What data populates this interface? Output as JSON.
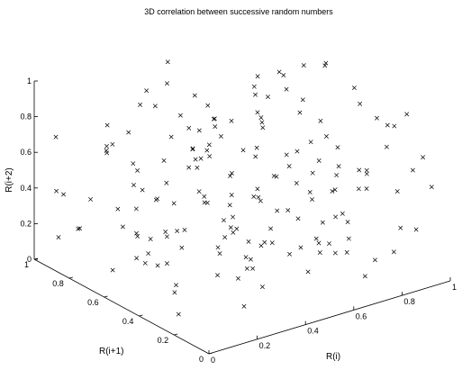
{
  "chart_data": {
    "type": "scatter",
    "title": "3D correlation between successive random numbers",
    "xlabel": "R(i)",
    "ylabel": "R(i+1)",
    "zlabel": "R(i+2)",
    "xlim": [
      0,
      1
    ],
    "ylim": [
      0,
      1
    ],
    "zlim": [
      0,
      1
    ],
    "marker": "x",
    "marker_color": "#000000",
    "grid": false,
    "x_ticks": [
      "0",
      "0.2",
      "0.4",
      "0.6",
      "0.8",
      "1"
    ],
    "y_ticks": [
      "0",
      "0.2",
      "0.4",
      "0.6",
      "0.8",
      "1"
    ],
    "z_ticks": [
      "0",
      "0.2",
      "0.4",
      "0.6",
      "0.8",
      "1"
    ],
    "series": [
      {
        "points": [
          [
            0.05,
            0.62,
            0.12
          ],
          [
            0.11,
            0.09,
            0.47
          ],
          [
            0.18,
            0.77,
            0.33
          ],
          [
            0.23,
            0.41,
            0.84
          ],
          [
            0.29,
            0.15,
            0.28
          ],
          [
            0.34,
            0.93,
            0.61
          ],
          [
            0.41,
            0.26,
            0.07
          ],
          [
            0.47,
            0.58,
            0.72
          ],
          [
            0.52,
            0.03,
            0.39
          ],
          [
            0.58,
            0.81,
            0.18
          ],
          [
            0.63,
            0.35,
            0.91
          ],
          [
            0.69,
            0.67,
            0.24
          ],
          [
            0.74,
            0.12,
            0.56
          ],
          [
            0.81,
            0.49,
            0.03
          ],
          [
            0.86,
            0.88,
            0.45
          ],
          [
            0.92,
            0.21,
            0.79
          ],
          [
            0.97,
            0.71,
            0.31
          ],
          [
            0.02,
            0.33,
            0.68
          ],
          [
            0.08,
            0.85,
            0.22
          ],
          [
            0.14,
            0.19,
            0.95
          ],
          [
            0.21,
            0.53,
            0.14
          ],
          [
            0.27,
            0.96,
            0.52
          ],
          [
            0.32,
            0.07,
            0.83
          ],
          [
            0.38,
            0.44,
            0.36
          ],
          [
            0.44,
            0.79,
            0.09
          ],
          [
            0.49,
            0.29,
            0.64
          ],
          [
            0.55,
            0.64,
            0.27
          ],
          [
            0.61,
            0.17,
            0.88
          ],
          [
            0.66,
            0.91,
            0.42
          ],
          [
            0.72,
            0.38,
            0.15
          ],
          [
            0.78,
            0.74,
            0.73
          ],
          [
            0.83,
            0.05,
            0.34
          ],
          [
            0.89,
            0.56,
            0.97
          ],
          [
            0.94,
            0.24,
            0.06
          ],
          [
            0.99,
            0.83,
            0.58
          ],
          [
            0.04,
            0.47,
            0.41
          ],
          [
            0.1,
            0.72,
            0.86
          ],
          [
            0.16,
            0.02,
            0.19
          ],
          [
            0.22,
            0.36,
            0.63
          ],
          [
            0.28,
            0.68,
            0.02
          ],
          [
            0.35,
            0.13,
            0.49
          ],
          [
            0.4,
            0.86,
            0.77
          ],
          [
            0.46,
            0.51,
            0.25
          ],
          [
            0.51,
            0.94,
            0.93
          ],
          [
            0.57,
            0.22,
            0.11
          ],
          [
            0.62,
            0.59,
            0.54
          ],
          [
            0.68,
            0.08,
            0.71
          ],
          [
            0.73,
            0.43,
            0.38
          ],
          [
            0.79,
            0.97,
            0.16
          ],
          [
            0.85,
            0.31,
            0.89
          ],
          [
            0.9,
            0.66,
            0.47
          ],
          [
            0.96,
            0.14,
            0.23
          ],
          [
            0.01,
            0.89,
            0.74
          ],
          [
            0.07,
            0.27,
            0.05
          ],
          [
            0.13,
            0.61,
            0.57
          ],
          [
            0.19,
            0.94,
            0.29
          ],
          [
            0.25,
            0.46,
            0.92
          ],
          [
            0.31,
            0.11,
            0.44
          ],
          [
            0.37,
            0.76,
            0.13
          ],
          [
            0.43,
            0.32,
            0.81
          ],
          [
            0.48,
            0.69,
            0.32
          ],
          [
            0.54,
            0.04,
            0.67
          ],
          [
            0.6,
            0.53,
            0.08
          ],
          [
            0.65,
            0.87,
            0.59
          ],
          [
            0.71,
            0.18,
            0.26
          ],
          [
            0.77,
            0.62,
            0.84
          ],
          [
            0.82,
            0.39,
            0.51
          ],
          [
            0.88,
            0.92,
            0.01
          ],
          [
            0.93,
            0.06,
            0.69
          ],
          [
            0.98,
            0.45,
            0.37
          ],
          [
            0.06,
            0.15,
            0.94
          ],
          [
            0.12,
            0.58,
            0.18
          ],
          [
            0.17,
            0.82,
            0.66
          ],
          [
            0.24,
            0.28,
            0.35
          ],
          [
            0.3,
            0.63,
            0.76
          ],
          [
            0.36,
            0.99,
            0.04
          ],
          [
            0.42,
            0.19,
            0.53
          ],
          [
            0.47,
            0.73,
            0.87
          ],
          [
            0.53,
            0.37,
            0.21
          ],
          [
            0.59,
            0.78,
            0.62
          ],
          [
            0.64,
            0.09,
            0.43
          ],
          [
            0.7,
            0.54,
            0.99
          ],
          [
            0.76,
            0.26,
            0.12
          ],
          [
            0.81,
            0.84,
            0.78
          ],
          [
            0.87,
            0.48,
            0.31
          ],
          [
            0.93,
            0.01,
            0.55
          ],
          [
            0.98,
            0.69,
            0.85
          ],
          [
            0.03,
            0.79,
            0.27
          ],
          [
            0.09,
            0.42,
            0.61
          ],
          [
            0.15,
            0.04,
            0.34
          ],
          [
            0.2,
            0.67,
            0.96
          ],
          [
            0.26,
            0.31,
            0.17
          ],
          [
            0.33,
            0.89,
            0.46
          ],
          [
            0.39,
            0.55,
            0.69
          ],
          [
            0.45,
            0.16,
            0.29
          ],
          [
            0.5,
            0.83,
            0.05
          ],
          [
            0.56,
            0.47,
            0.82
          ],
          [
            0.62,
            0.95,
            0.39
          ],
          [
            0.67,
            0.29,
            0.14
          ],
          [
            0.73,
            0.71,
            0.65
          ],
          [
            0.79,
            0.13,
            0.93
          ],
          [
            0.84,
            0.57,
            0.22
          ],
          [
            0.9,
            0.34,
            0.48
          ],
          [
            0.95,
            0.91,
            0.71
          ],
          [
            0.0,
            0.24,
            0.53
          ],
          [
            0.14,
            0.39,
            0.08
          ],
          [
            0.26,
            0.74,
            0.42
          ],
          [
            0.38,
            0.02,
            0.97
          ],
          [
            0.49,
            0.45,
            0.19
          ],
          [
            0.61,
            0.81,
            0.64
          ],
          [
            0.72,
            0.27,
            0.33
          ],
          [
            0.84,
            0.65,
            0.07
          ],
          [
            0.95,
            0.18,
            0.86
          ],
          [
            0.07,
            0.97,
            0.37
          ],
          [
            0.19,
            0.52,
            0.73
          ],
          [
            0.31,
            0.21,
            0.24
          ],
          [
            0.43,
            0.64,
            0.58
          ],
          [
            0.55,
            0.96,
            0.11
          ],
          [
            0.66,
            0.41,
            0.47
          ],
          [
            0.78,
            0.06,
            0.81
          ],
          [
            0.89,
            0.77,
            0.28
          ],
          [
            0.11,
            0.34,
            0.16
          ],
          [
            0.23,
            0.87,
            0.62
          ],
          [
            0.35,
            0.49,
            0.99
          ],
          [
            0.46,
            0.11,
            0.35
          ],
          [
            0.58,
            0.71,
            0.04
          ],
          [
            0.7,
            0.23,
            0.75
          ],
          [
            0.81,
            0.99,
            0.45
          ],
          [
            0.93,
            0.52,
            0.13
          ],
          [
            0.04,
            0.08,
            0.79
          ],
          [
            0.16,
            0.63,
            0.26
          ],
          [
            0.28,
            0.25,
            0.52
          ],
          [
            0.4,
            0.91,
            0.83
          ],
          [
            0.52,
            0.58,
            0.16
          ],
          [
            0.63,
            0.14,
            0.67
          ],
          [
            0.75,
            0.84,
            0.39
          ],
          [
            0.87,
            0.37,
            0.94
          ],
          [
            0.98,
            0.76,
            0.21
          ],
          [
            0.09,
            0.54,
            0.49
          ],
          [
            0.21,
            0.16,
            0.72
          ],
          [
            0.33,
            0.79,
            0.09
          ],
          [
            0.44,
            0.33,
            0.57
          ],
          [
            0.56,
            0.05,
            0.31
          ],
          [
            0.68,
            0.68,
            0.86
          ],
          [
            0.79,
            0.44,
            0.18
          ],
          [
            0.91,
            0.09,
            0.61
          ],
          [
            0.02,
            0.86,
            0.43
          ],
          [
            0.14,
            0.27,
            0.89
          ],
          [
            0.25,
            0.71,
            0.03
          ],
          [
            0.37,
            0.38,
            0.66
          ],
          [
            0.49,
            0.92,
            0.27
          ],
          [
            0.6,
            0.19,
            0.96
          ],
          [
            0.72,
            0.55,
            0.53
          ],
          [
            0.83,
            0.89,
            0.07
          ],
          [
            0.95,
            0.29,
            0.74
          ],
          [
            0.06,
            0.43,
            0.31
          ],
          [
            0.18,
            0.09,
            0.58
          ],
          [
            0.3,
            0.57,
            0.17
          ],
          [
            0.42,
            0.82,
            0.91
          ],
          [
            0.53,
            0.28,
            0.44
          ],
          [
            0.65,
            0.62,
            0.76
          ],
          [
            0.77,
            0.17,
            0.03
          ],
          [
            0.88,
            0.95,
            0.59
          ],
          [
            0.99,
            0.51,
            0.25
          ],
          [
            0.12,
            0.75,
            0.68
          ],
          [
            0.24,
            0.12,
            0.38
          ],
          [
            0.36,
            0.66,
            0.84
          ],
          [
            0.47,
            0.41,
            0.12
          ],
          [
            0.59,
            0.87,
            0.55
          ],
          [
            0.71,
            0.03,
            0.22
          ],
          [
            0.82,
            0.59,
            0.97
          ],
          [
            0.94,
            0.22,
            0.41
          ],
          [
            0.05,
            0.93,
            0.14
          ],
          [
            0.17,
            0.35,
            0.79
          ],
          [
            0.29,
            0.81,
            0.48
          ]
        ]
      }
    ]
  }
}
